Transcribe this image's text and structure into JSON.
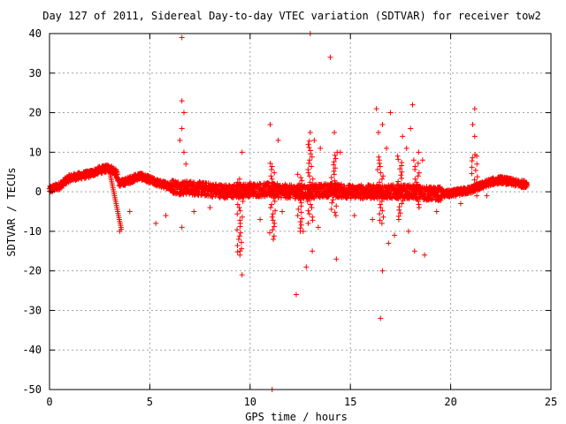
{
  "chart_data": {
    "type": "scatter",
    "title": "Day 127 of 2011, Sidereal Day-to-day VTEC variation (SDTVAR) for receiver tow2",
    "xlabel": "GPS time / hours",
    "ylabel": "SDTVAR / TECUs",
    "xlim": [
      0,
      25
    ],
    "ylim": [
      -50,
      40
    ],
    "xticks": [
      0,
      5,
      10,
      15,
      20,
      25
    ],
    "yticks": [
      -50,
      -40,
      -30,
      -20,
      -10,
      0,
      10,
      20,
      30,
      40
    ],
    "grid": true,
    "marker": "plus",
    "series_color": "#ff0000",
    "baseline_trend": [
      [
        0.0,
        0.5
      ],
      [
        0.5,
        1.5
      ],
      [
        1.0,
        3.5
      ],
      [
        1.5,
        4.0
      ],
      [
        2.0,
        4.5
      ],
      [
        2.5,
        5.5
      ],
      [
        3.0,
        6.0
      ],
      [
        3.3,
        5.0
      ],
      [
        3.5,
        2.0
      ],
      [
        4.0,
        3.0
      ],
      [
        4.5,
        4.0
      ],
      [
        5.0,
        3.0
      ],
      [
        5.5,
        2.0
      ],
      [
        6.0,
        1.5
      ],
      [
        6.5,
        1.0
      ],
      [
        7.0,
        1.0
      ],
      [
        8.0,
        0.5
      ],
      [
        9.0,
        0.0
      ],
      [
        10.0,
        0.5
      ],
      [
        11.0,
        0.5
      ],
      [
        12.0,
        0.0
      ],
      [
        13.0,
        0.0
      ],
      [
        14.0,
        0.5
      ],
      [
        15.0,
        0.0
      ],
      [
        16.0,
        0.0
      ],
      [
        17.0,
        0.0
      ],
      [
        18.0,
        0.0
      ],
      [
        19.0,
        -0.5
      ],
      [
        20.0,
        -0.5
      ],
      [
        21.0,
        0.5
      ],
      [
        21.5,
        1.5
      ],
      [
        22.0,
        2.5
      ],
      [
        22.5,
        3.0
      ],
      [
        23.0,
        2.5
      ],
      [
        23.5,
        2.0
      ],
      [
        23.8,
        2.0
      ]
    ],
    "outlier_points": [
      [
        6.6,
        39
      ],
      [
        13.0,
        40
      ],
      [
        14.0,
        34
      ],
      [
        6.6,
        23
      ],
      [
        6.7,
        20
      ],
      [
        6.6,
        16
      ],
      [
        6.5,
        13
      ],
      [
        6.7,
        10
      ],
      [
        6.8,
        7
      ],
      [
        11.0,
        17
      ],
      [
        11.4,
        13
      ],
      [
        13.0,
        15
      ],
      [
        13.2,
        13
      ],
      [
        13.5,
        11
      ],
      [
        14.2,
        15
      ],
      [
        14.5,
        10
      ],
      [
        16.3,
        21
      ],
      [
        16.6,
        17
      ],
      [
        16.4,
        15
      ],
      [
        16.8,
        11
      ],
      [
        17.0,
        20
      ],
      [
        17.6,
        14
      ],
      [
        18.1,
        22
      ],
      [
        18.0,
        16
      ],
      [
        17.8,
        11
      ],
      [
        18.4,
        10
      ],
      [
        18.6,
        8
      ],
      [
        21.2,
        21
      ],
      [
        21.1,
        17
      ],
      [
        21.2,
        14
      ],
      [
        21.3,
        9
      ],
      [
        9.6,
        10
      ],
      [
        3.5,
        -10
      ],
      [
        4.0,
        -5
      ],
      [
        5.3,
        -8
      ],
      [
        6.6,
        -9
      ],
      [
        9.5,
        -15
      ],
      [
        9.6,
        -21
      ],
      [
        11.1,
        -50
      ],
      [
        12.3,
        -26
      ],
      [
        12.8,
        -19
      ],
      [
        13.1,
        -15
      ],
      [
        13.4,
        -9
      ],
      [
        14.3,
        -17
      ],
      [
        16.6,
        -20
      ],
      [
        16.5,
        -32
      ],
      [
        16.9,
        -13
      ],
      [
        17.2,
        -11
      ],
      [
        17.9,
        -10
      ],
      [
        18.2,
        -15
      ],
      [
        18.7,
        -16
      ],
      [
        19.3,
        -5
      ],
      [
        5.8,
        -6
      ],
      [
        7.2,
        -5
      ],
      [
        8.0,
        -4
      ],
      [
        10.5,
        -7
      ],
      [
        11.6,
        -5
      ],
      [
        12.5,
        -10
      ],
      [
        15.2,
        -6
      ],
      [
        16.1,
        -7
      ],
      [
        20.5,
        -3
      ],
      [
        21.8,
        -1
      ]
    ]
  }
}
